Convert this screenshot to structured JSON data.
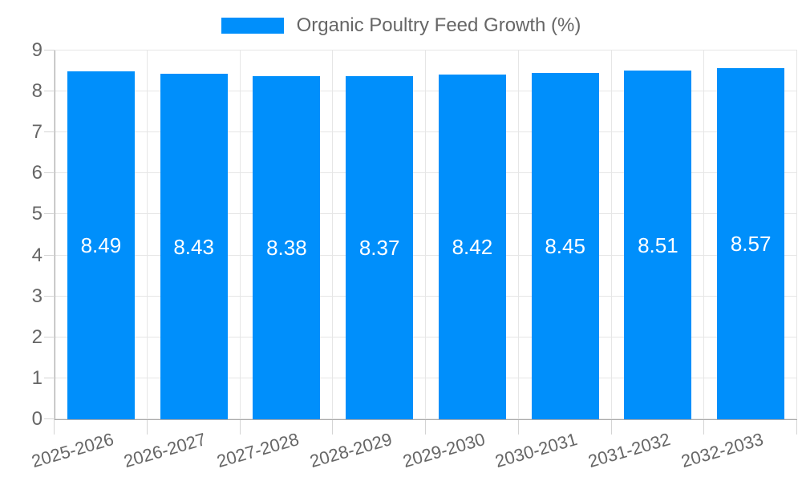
{
  "legend": {
    "label": "Organic Poultry Feed Growth (%)"
  },
  "chart_data": {
    "type": "bar",
    "title": "Organic Poultry Feed Growth (%)",
    "categories": [
      "2025-2026",
      "2026-2027",
      "2027-2028",
      "2028-2029",
      "2029-2030",
      "2030-2031",
      "2031-2032",
      "2032-2033"
    ],
    "values": [
      8.49,
      8.43,
      8.38,
      8.37,
      8.42,
      8.45,
      8.51,
      8.57
    ],
    "value_labels": [
      "8.49",
      "8.43",
      "8.38",
      "8.37",
      "8.42",
      "8.45",
      "8.51",
      "8.57"
    ],
    "xlabel": "",
    "ylabel": "",
    "ylim": [
      0,
      9
    ],
    "y_ticks": [
      0,
      1,
      2,
      3,
      4,
      5,
      6,
      7,
      8,
      9
    ],
    "grid": true,
    "legend_position": "top",
    "colors": {
      "bar": "#008FFB",
      "value_label": "#FFFFFF",
      "axis_text": "#666666",
      "gridline": "#E6E6E6",
      "axis_line": "#ABABAB",
      "tick": "#D4D4D4",
      "background": "#FFFFFF"
    }
  }
}
